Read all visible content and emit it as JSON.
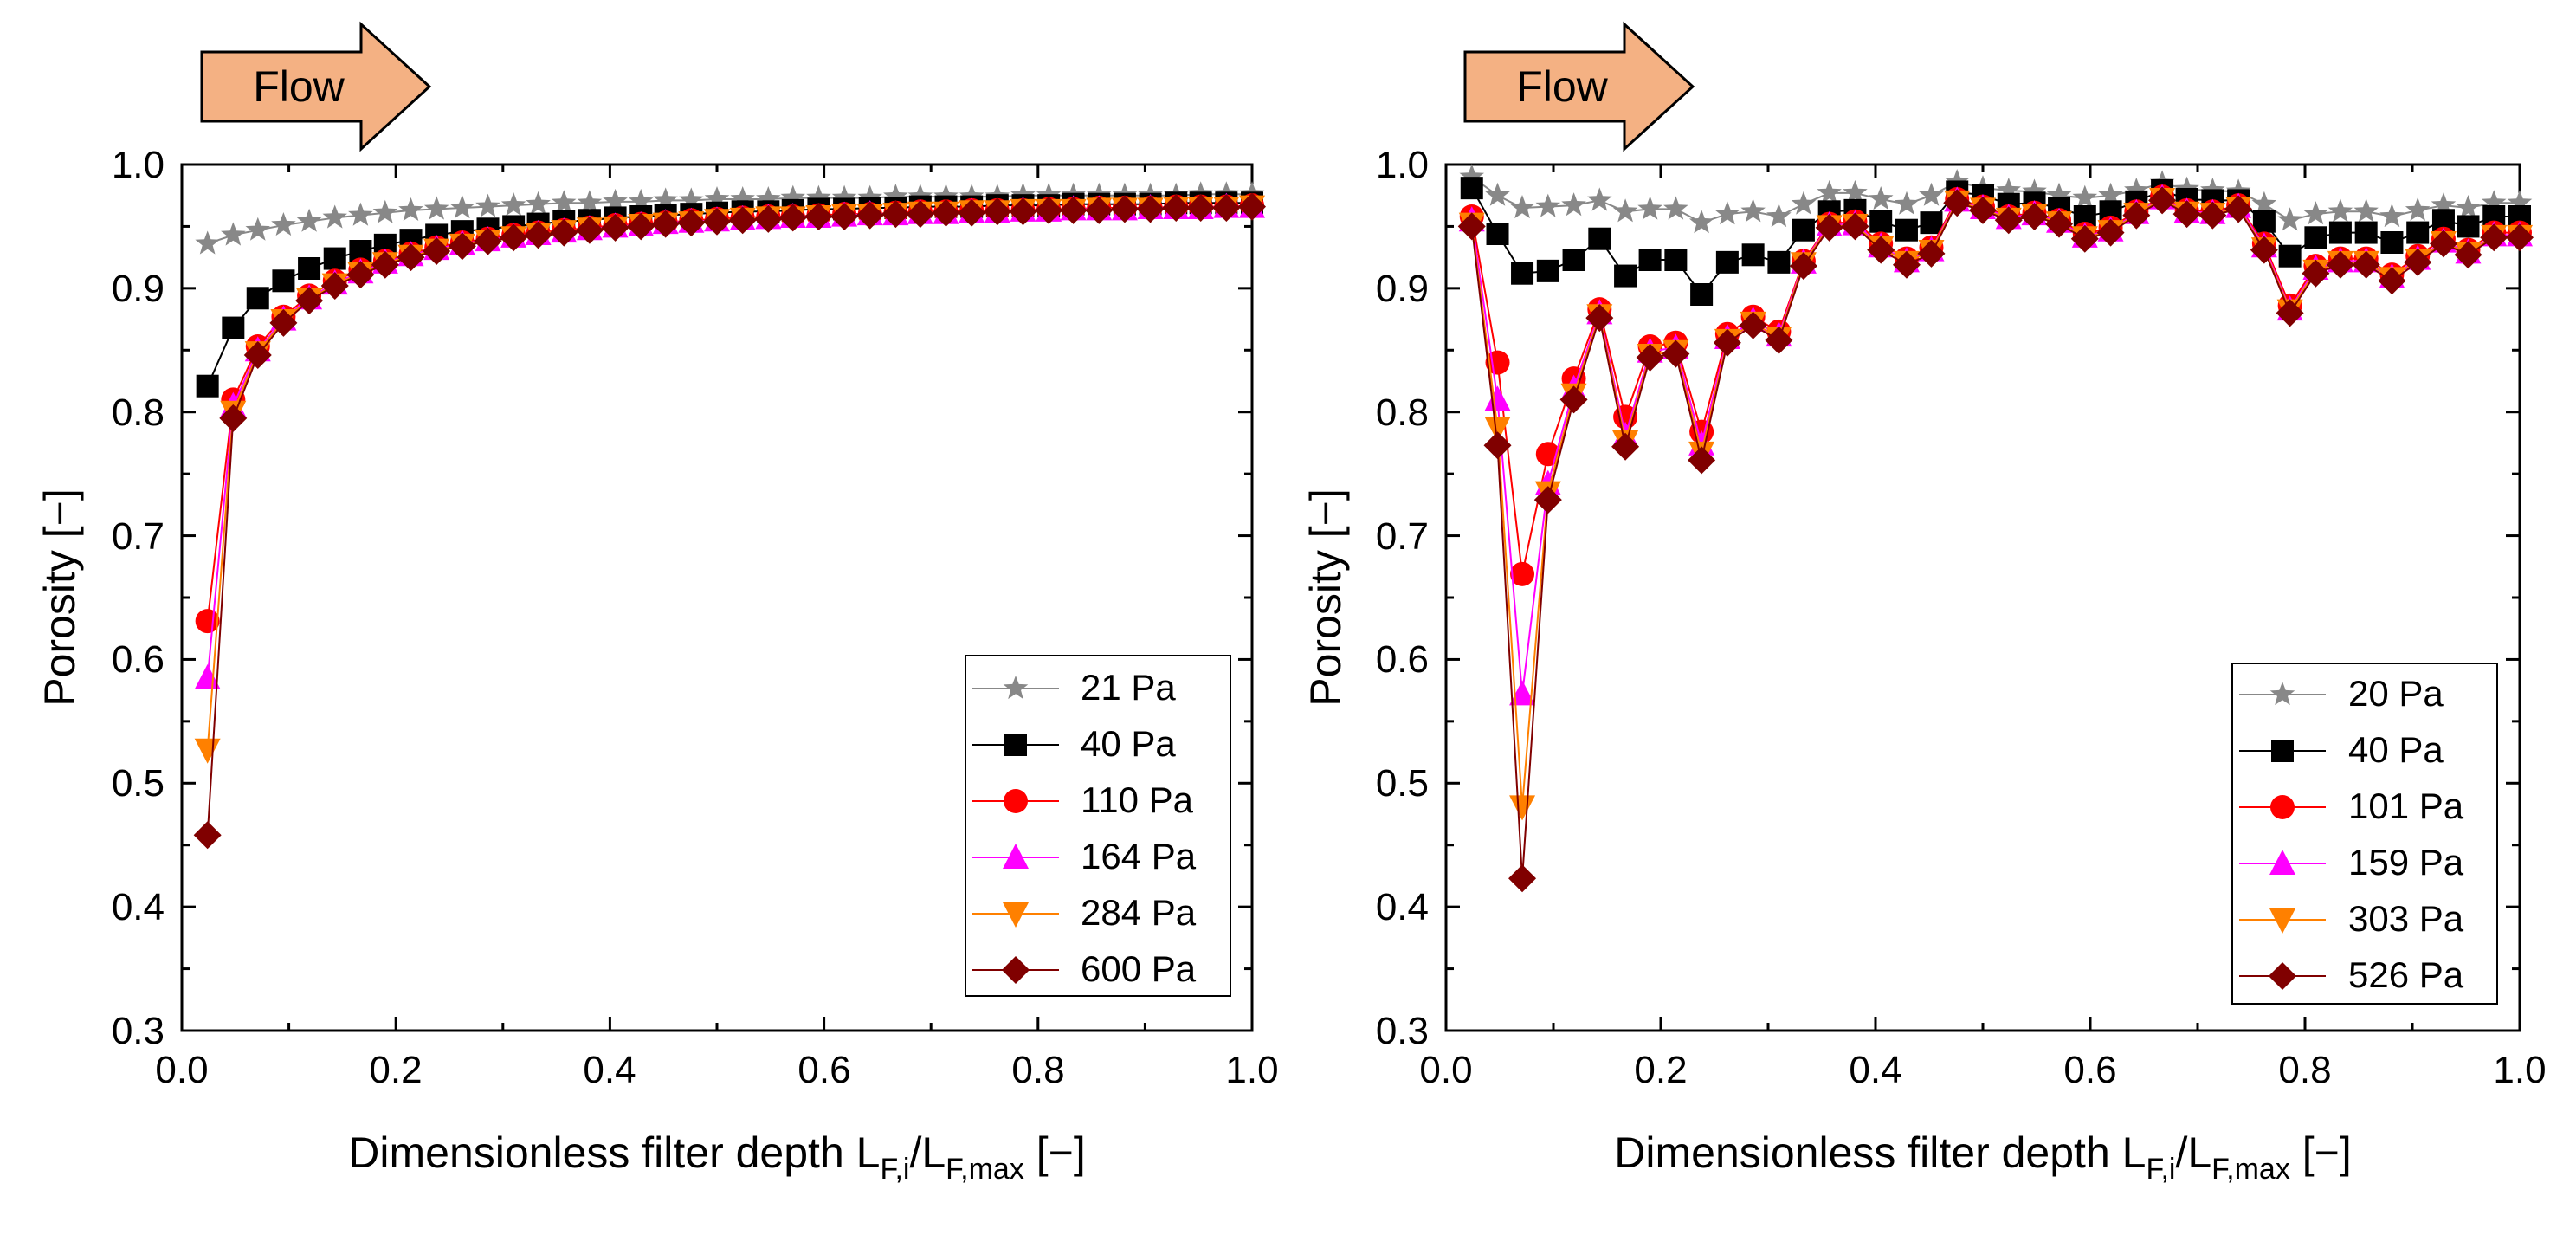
{
  "chart_data": [
    {
      "type": "line",
      "panel": "left",
      "flow_label": "Flow",
      "xlabel": "Dimensionless filter depth L",
      "xlabel_parts": [
        "Dimensionless filter depth L",
        "F,i",
        "/L",
        "F,max",
        " [−]"
      ],
      "ylabel": "Porosity [−]",
      "xlim": [
        0.0,
        1.0
      ],
      "ylim": [
        0.3,
        1.0
      ],
      "xticks": [
        "0.0",
        "0.2",
        "0.4",
        "0.6",
        "0.8",
        "1.0"
      ],
      "yticks": [
        "0.3",
        "0.4",
        "0.5",
        "0.6",
        "0.7",
        "0.8",
        "0.9",
        "1.0"
      ],
      "legend_position": "bottom-right",
      "x": [
        0.024,
        0.048,
        0.071,
        0.095,
        0.119,
        0.143,
        0.167,
        0.19,
        0.214,
        0.238,
        0.262,
        0.286,
        0.31,
        0.333,
        0.357,
        0.381,
        0.405,
        0.429,
        0.452,
        0.476,
        0.5,
        0.524,
        0.548,
        0.571,
        0.595,
        0.619,
        0.643,
        0.667,
        0.69,
        0.714,
        0.738,
        0.762,
        0.786,
        0.81,
        0.833,
        0.857,
        0.881,
        0.905,
        0.929,
        0.952,
        0.976,
        1.0
      ],
      "series": [
        {
          "name": "21 Pa",
          "color": "#888888",
          "marker": "star",
          "values": [
            0.936,
            0.943,
            0.947,
            0.951,
            0.954,
            0.957,
            0.959,
            0.961,
            0.963,
            0.964,
            0.965,
            0.966,
            0.967,
            0.968,
            0.969,
            0.969,
            0.97,
            0.97,
            0.971,
            0.971,
            0.972,
            0.972,
            0.972,
            0.973,
            0.973,
            0.973,
            0.973,
            0.974,
            0.974,
            0.974,
            0.974,
            0.974,
            0.975,
            0.975,
            0.975,
            0.975,
            0.975,
            0.975,
            0.975,
            0.976,
            0.976,
            0.976
          ]
        },
        {
          "name": "40 Pa",
          "color": "#000000",
          "marker": "square",
          "values": [
            0.821,
            0.868,
            0.892,
            0.906,
            0.916,
            0.924,
            0.93,
            0.935,
            0.939,
            0.943,
            0.946,
            0.948,
            0.95,
            0.952,
            0.954,
            0.955,
            0.957,
            0.958,
            0.959,
            0.96,
            0.961,
            0.962,
            0.962,
            0.963,
            0.964,
            0.964,
            0.965,
            0.965,
            0.966,
            0.966,
            0.966,
            0.967,
            0.967,
            0.967,
            0.968,
            0.968,
            0.968,
            0.968,
            0.969,
            0.969,
            0.969,
            0.969
          ]
        },
        {
          "name": "110 Pa",
          "color": "#ff0000",
          "marker": "circle",
          "values": [
            0.631,
            0.81,
            0.853,
            0.877,
            0.894,
            0.906,
            0.915,
            0.922,
            0.928,
            0.933,
            0.937,
            0.94,
            0.943,
            0.945,
            0.947,
            0.949,
            0.951,
            0.952,
            0.953,
            0.955,
            0.956,
            0.957,
            0.958,
            0.958,
            0.959,
            0.96,
            0.96,
            0.961,
            0.962,
            0.962,
            0.963,
            0.963,
            0.963,
            0.964,
            0.964,
            0.965,
            0.965,
            0.965,
            0.966,
            0.966,
            0.966,
            0.967
          ]
        },
        {
          "name": "164 Pa",
          "color": "#ff00ff",
          "marker": "triangle-up",
          "values": [
            0.585,
            0.805,
            0.85,
            0.875,
            0.892,
            0.904,
            0.913,
            0.921,
            0.927,
            0.932,
            0.936,
            0.939,
            0.942,
            0.944,
            0.946,
            0.948,
            0.95,
            0.951,
            0.953,
            0.954,
            0.955,
            0.956,
            0.957,
            0.958,
            0.958,
            0.959,
            0.96,
            0.96,
            0.961,
            0.961,
            0.962,
            0.962,
            0.963,
            0.963,
            0.964,
            0.964,
            0.964,
            0.965,
            0.965,
            0.965,
            0.966,
            0.966
          ]
        },
        {
          "name": "284 Pa",
          "color": "#ff8000",
          "marker": "triangle-down",
          "values": [
            0.527,
            0.8,
            0.848,
            0.874,
            0.891,
            0.903,
            0.912,
            0.92,
            0.926,
            0.931,
            0.935,
            0.938,
            0.941,
            0.944,
            0.946,
            0.948,
            0.949,
            0.951,
            0.952,
            0.953,
            0.955,
            0.956,
            0.957,
            0.957,
            0.958,
            0.959,
            0.959,
            0.96,
            0.961,
            0.961,
            0.962,
            0.962,
            0.963,
            0.963,
            0.963,
            0.964,
            0.964,
            0.964,
            0.965,
            0.965,
            0.965,
            0.966
          ]
        },
        {
          "name": "600 Pa",
          "color": "#800000",
          "marker": "diamond",
          "values": [
            0.458,
            0.795,
            0.846,
            0.872,
            0.89,
            0.902,
            0.911,
            0.919,
            0.925,
            0.93,
            0.934,
            0.938,
            0.941,
            0.943,
            0.945,
            0.947,
            0.949,
            0.95,
            0.952,
            0.953,
            0.954,
            0.955,
            0.956,
            0.957,
            0.958,
            0.958,
            0.959,
            0.96,
            0.96,
            0.961,
            0.961,
            0.962,
            0.962,
            0.963,
            0.963,
            0.963,
            0.964,
            0.964,
            0.965,
            0.965,
            0.965,
            0.966
          ]
        }
      ]
    },
    {
      "type": "line",
      "panel": "right",
      "flow_label": "Flow",
      "xlabel": "Dimensionless filter depth L",
      "xlabel_parts": [
        "Dimensionless filter depth L",
        "F,i",
        "/L",
        "F,max",
        " [−]"
      ],
      "ylabel": "Porosity [−]",
      "xlim": [
        0.0,
        1.0
      ],
      "ylim": [
        0.3,
        1.0
      ],
      "xticks": [
        "0.0",
        "0.2",
        "0.4",
        "0.6",
        "0.8",
        "1.0"
      ],
      "yticks": [
        "0.3",
        "0.4",
        "0.5",
        "0.6",
        "0.7",
        "0.8",
        "0.9",
        "1.0"
      ],
      "legend_position": "bottom-right",
      "x": [
        0.024,
        0.048,
        0.071,
        0.095,
        0.119,
        0.143,
        0.167,
        0.19,
        0.214,
        0.238,
        0.262,
        0.286,
        0.31,
        0.333,
        0.357,
        0.381,
        0.405,
        0.429,
        0.452,
        0.476,
        0.5,
        0.524,
        0.548,
        0.571,
        0.595,
        0.619,
        0.643,
        0.667,
        0.69,
        0.714,
        0.738,
        0.762,
        0.786,
        0.81,
        0.833,
        0.857,
        0.881,
        0.905,
        0.929,
        0.952,
        0.976,
        1.0
      ],
      "series": [
        {
          "name": "20 Pa",
          "color": "#888888",
          "marker": "star",
          "values": [
            0.99,
            0.975,
            0.965,
            0.966,
            0.967,
            0.971,
            0.962,
            0.964,
            0.964,
            0.953,
            0.96,
            0.962,
            0.958,
            0.968,
            0.977,
            0.977,
            0.972,
            0.968,
            0.975,
            0.986,
            0.981,
            0.979,
            0.978,
            0.975,
            0.973,
            0.975,
            0.979,
            0.985,
            0.98,
            0.979,
            0.978,
            0.968,
            0.955,
            0.96,
            0.962,
            0.962,
            0.958,
            0.963,
            0.967,
            0.965,
            0.969,
            0.969
          ]
        },
        {
          "name": "40 Pa",
          "color": "#000000",
          "marker": "square",
          "values": [
            0.981,
            0.944,
            0.912,
            0.914,
            0.923,
            0.94,
            0.91,
            0.923,
            0.923,
            0.895,
            0.921,
            0.927,
            0.921,
            0.947,
            0.962,
            0.963,
            0.954,
            0.947,
            0.953,
            0.978,
            0.975,
            0.968,
            0.969,
            0.965,
            0.958,
            0.962,
            0.97,
            0.979,
            0.972,
            0.971,
            0.971,
            0.954,
            0.926,
            0.941,
            0.945,
            0.945,
            0.937,
            0.945,
            0.955,
            0.95,
            0.958,
            0.958
          ]
        },
        {
          "name": "101 Pa",
          "color": "#ff0000",
          "marker": "circle",
          "values": [
            0.958,
            0.84,
            0.669,
            0.766,
            0.827,
            0.883,
            0.796,
            0.853,
            0.856,
            0.784,
            0.863,
            0.877,
            0.865,
            0.922,
            0.952,
            0.954,
            0.936,
            0.924,
            0.933,
            0.972,
            0.966,
            0.958,
            0.961,
            0.955,
            0.944,
            0.949,
            0.962,
            0.974,
            0.963,
            0.962,
            0.967,
            0.936,
            0.886,
            0.918,
            0.924,
            0.924,
            0.911,
            0.926,
            0.94,
            0.931,
            0.945,
            0.945
          ]
        },
        {
          "name": "159 Pa",
          "color": "#ff00ff",
          "marker": "triangle-up",
          "values": [
            0.955,
            0.81,
            0.572,
            0.742,
            0.819,
            0.88,
            0.781,
            0.849,
            0.852,
            0.774,
            0.86,
            0.874,
            0.862,
            0.921,
            0.951,
            0.952,
            0.934,
            0.922,
            0.931,
            0.971,
            0.965,
            0.957,
            0.96,
            0.954,
            0.942,
            0.947,
            0.961,
            0.973,
            0.962,
            0.961,
            0.966,
            0.934,
            0.883,
            0.916,
            0.922,
            0.922,
            0.909,
            0.924,
            0.938,
            0.929,
            0.943,
            0.943
          ]
        },
        {
          "name": "303 Pa",
          "color": "#ff8000",
          "marker": "triangle-down",
          "values": [
            0.952,
            0.787,
            0.481,
            0.735,
            0.814,
            0.878,
            0.776,
            0.846,
            0.849,
            0.767,
            0.858,
            0.872,
            0.86,
            0.92,
            0.95,
            0.951,
            0.933,
            0.921,
            0.93,
            0.97,
            0.964,
            0.956,
            0.959,
            0.953,
            0.941,
            0.946,
            0.96,
            0.972,
            0.961,
            0.96,
            0.965,
            0.932,
            0.882,
            0.914,
            0.921,
            0.921,
            0.908,
            0.923,
            0.937,
            0.928,
            0.942,
            0.942
          ]
        },
        {
          "name": "526 Pa",
          "color": "#800000",
          "marker": "diamond",
          "values": [
            0.95,
            0.773,
            0.423,
            0.729,
            0.81,
            0.876,
            0.772,
            0.844,
            0.847,
            0.761,
            0.856,
            0.87,
            0.858,
            0.918,
            0.949,
            0.95,
            0.931,
            0.919,
            0.928,
            0.969,
            0.963,
            0.955,
            0.958,
            0.952,
            0.94,
            0.945,
            0.959,
            0.971,
            0.96,
            0.959,
            0.964,
            0.931,
            0.88,
            0.912,
            0.919,
            0.919,
            0.906,
            0.921,
            0.936,
            0.927,
            0.941,
            0.941
          ]
        }
      ]
    }
  ]
}
